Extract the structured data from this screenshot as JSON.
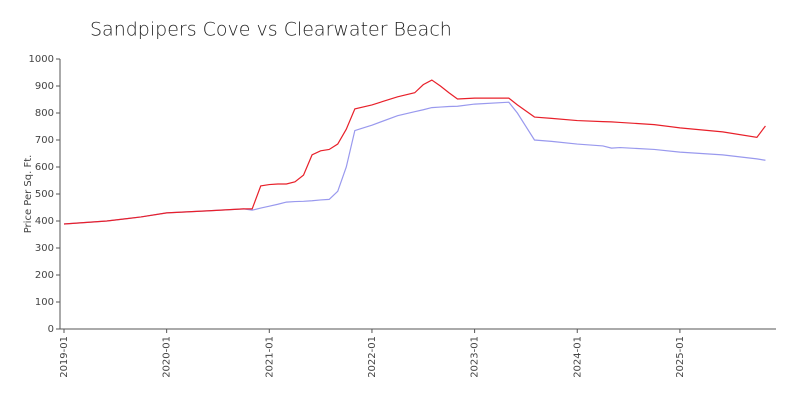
{
  "chart_data": {
    "type": "line",
    "title": "Sandpipers Cove vs Clearwater Beach",
    "y_label": "Price Per Sq. Ft.",
    "x": [
      "2019-01",
      "2019-06",
      "2019-10",
      "2020-01",
      "2020-06",
      "2020-10",
      "2020-11",
      "2020-12",
      "2021-01",
      "2021-02",
      "2021-03",
      "2021-04",
      "2021-05",
      "2021-06",
      "2021-07",
      "2021-08",
      "2021-09",
      "2021-10",
      "2021-11",
      "2022-01",
      "2022-04",
      "2022-06",
      "2022-07",
      "2022-08",
      "2022-09",
      "2022-10",
      "2022-11",
      "2023-01",
      "2023-05",
      "2023-06",
      "2023-08",
      "2023-10",
      "2024-01",
      "2024-04",
      "2024-05",
      "2024-06",
      "2024-10",
      "2025-01",
      "2025-06",
      "2025-10",
      "2025-11"
    ],
    "series": [
      {
        "color": "#9999ee",
        "values": [
          389,
          400,
          415,
          430,
          438,
          445,
          440,
          448,
          455,
          462,
          470,
          472,
          473,
          475,
          478,
          480,
          510,
          600,
          735,
          755,
          790,
          805,
          812,
          820,
          822,
          824,
          825,
          833,
          840,
          800,
          700,
          695,
          685,
          678,
          670,
          672,
          665,
          655,
          645,
          630,
          625
        ]
      },
      {
        "color": "#e8202a",
        "values": [
          389,
          400,
          415,
          430,
          438,
          445,
          445,
          530,
          535,
          537,
          537,
          545,
          570,
          645,
          660,
          665,
          685,
          740,
          815,
          830,
          860,
          875,
          905,
          922,
          900,
          875,
          852,
          855,
          855,
          830,
          785,
          780,
          772,
          768,
          767,
          765,
          757,
          745,
          730,
          710,
          752
        ]
      }
    ],
    "xlim": [
      "2019-01",
      "2025-12"
    ],
    "xticks": [
      "2019-01",
      "2020-01",
      "2021-01",
      "2022-01",
      "2023-01",
      "2024-01",
      "2025-01"
    ],
    "ylim": [
      0,
      1000
    ],
    "yticks": [
      0,
      100,
      200,
      300,
      400,
      500,
      600,
      700,
      800,
      900,
      1000
    ]
  }
}
